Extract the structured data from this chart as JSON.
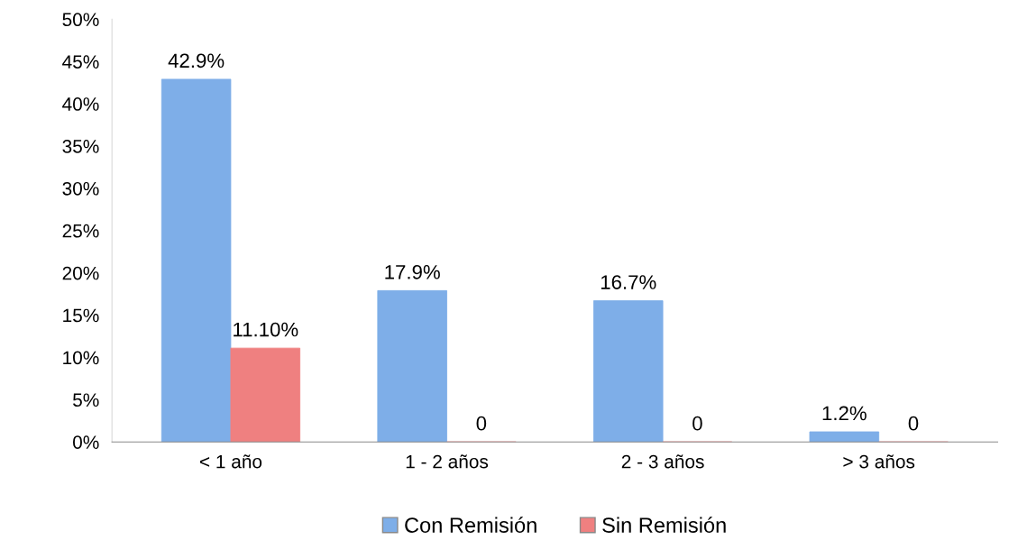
{
  "chart_data": {
    "type": "bar",
    "categories": [
      "< 1 año",
      "1 - 2 años",
      "2 - 3 años",
      "> 3 años"
    ],
    "series": [
      {
        "name": "Con Remisión",
        "color": "#7eaee8",
        "values": [
          42.9,
          17.9,
          16.7,
          1.2
        ],
        "value_labels": [
          "42.9%",
          "17.9%",
          "16.7%",
          "1.2%"
        ]
      },
      {
        "name": "Sin Remisión",
        "color": "#ef8080",
        "values": [
          11.1,
          0,
          0,
          0
        ],
        "value_labels": [
          "11.10%",
          "0",
          "0",
          "0"
        ]
      }
    ],
    "ylim": [
      0,
      50
    ],
    "yticks": [
      {
        "value": 0,
        "label": "0%"
      },
      {
        "value": 5,
        "label": "5%"
      },
      {
        "value": 10,
        "label": "10%"
      },
      {
        "value": 15,
        "label": "15%"
      },
      {
        "value": 20,
        "label": "20%"
      },
      {
        "value": 25,
        "label": "25%"
      },
      {
        "value": 30,
        "label": "30%"
      },
      {
        "value": 35,
        "label": "35%"
      },
      {
        "value": 40,
        "label": "40%"
      },
      {
        "value": 45,
        "label": "45%"
      },
      {
        "value": 50,
        "label": "50%"
      }
    ],
    "grid": false,
    "legend": "bottom"
  }
}
